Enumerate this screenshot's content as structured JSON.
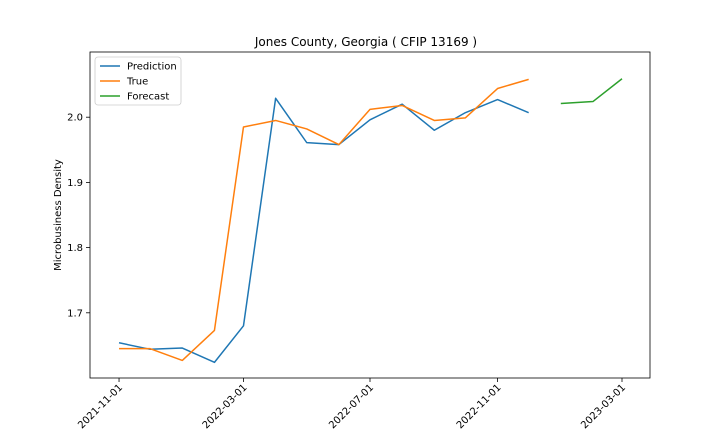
{
  "chart_data": {
    "type": "line",
    "title": "Jones County, Georgia ( CFIP 13169 )",
    "xlabel": "",
    "ylabel": "Microbusiness Density",
    "x_ticks": [
      "2021-11-01",
      "2022-03-01",
      "2022-07-01",
      "2022-11-01",
      "2023-03-01"
    ],
    "y_ticks": [
      1.7,
      1.8,
      1.9,
      2.0
    ],
    "y_tick_labels": [
      "1.7",
      "1.8",
      "1.9",
      "2.0"
    ],
    "ylim": [
      1.6,
      2.1
    ],
    "grid": false,
    "legend_position": "upper-left",
    "series": [
      {
        "name": "Prediction",
        "color": "#1f77b4",
        "x": [
          "2021-11-01",
          "2021-12-01",
          "2022-01-01",
          "2022-02-01",
          "2022-03-01",
          "2022-04-01",
          "2022-05-01",
          "2022-06-01",
          "2022-07-01",
          "2022-08-01",
          "2022-09-01",
          "2022-10-01",
          "2022-11-01",
          "2022-12-01"
        ],
        "y": [
          1.654,
          1.644,
          1.646,
          1.624,
          1.68,
          2.029,
          1.961,
          1.958,
          1.996,
          2.02,
          1.98,
          2.007,
          2.027,
          2.007
        ]
      },
      {
        "name": "True",
        "color": "#ff7f0e",
        "x": [
          "2021-11-01",
          "2021-12-01",
          "2022-01-01",
          "2022-02-01",
          "2022-03-01",
          "2022-04-01",
          "2022-05-01",
          "2022-06-01",
          "2022-07-01",
          "2022-08-01",
          "2022-09-01",
          "2022-10-01",
          "2022-11-01",
          "2022-12-01"
        ],
        "y": [
          1.645,
          1.645,
          1.627,
          1.673,
          1.985,
          1.995,
          1.982,
          1.958,
          2.012,
          2.018,
          1.995,
          1.999,
          2.044,
          2.058
        ]
      },
      {
        "name": "Forecast",
        "color": "#2ca02c",
        "x": [
          "2023-01-01",
          "2023-02-01",
          "2023-03-01"
        ],
        "y": [
          2.021,
          2.024,
          2.059
        ]
      }
    ]
  }
}
